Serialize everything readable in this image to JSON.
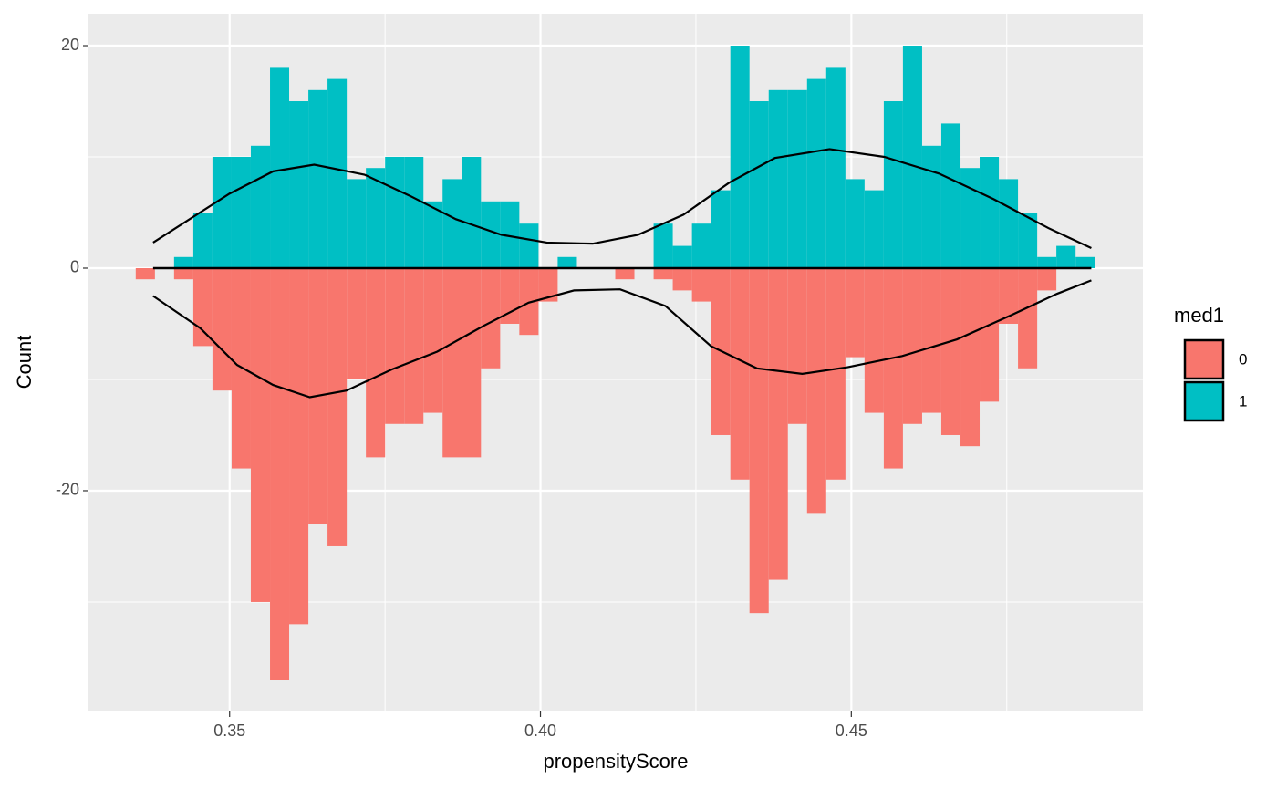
{
  "chart_data": {
    "type": "histogram",
    "xlabel": "propensityScore",
    "ylabel": "Count",
    "legend_title": "med1",
    "legend": "right",
    "grid": true,
    "background": "#EBEBEB",
    "xlim": [
      0.3273,
      0.4969
    ],
    "ylim": [
      -39.84,
      22.87
    ],
    "xticks": [
      0.35,
      {
        "value": 0.4,
        "label": "0.40"
      },
      0.45
    ],
    "yticks": [
      -20,
      0,
      20
    ],
    "xminor": [
      0.375,
      0.425,
      0.475
    ],
    "yminor": [
      -30,
      -10,
      10
    ],
    "bins": [
      0.3349,
      0.33799,
      0.34107,
      0.34416,
      0.34724,
      0.35033,
      0.35341,
      0.3565,
      0.35958,
      0.36267,
      0.36575,
      0.36884,
      0.37192,
      0.37501,
      0.37809,
      0.38118,
      0.38426,
      0.38735,
      0.39043,
      0.39352,
      0.3966,
      0.39969,
      0.40277,
      0.40586,
      0.40894,
      0.41203,
      0.41511,
      0.4182,
      0.42128,
      0.42437,
      0.42745,
      0.43054,
      0.43362,
      0.43671,
      0.43979,
      0.44288,
      0.44596,
      0.44905,
      0.45213,
      0.45522,
      0.4583,
      0.46139,
      0.46447,
      0.46756,
      0.47064,
      0.47373,
      0.47681,
      0.4799,
      0.48298,
      0.48607,
      0.48915
    ],
    "series": [
      {
        "name": "0",
        "color": "#F8766D",
        "values": [
          -1,
          0,
          -1,
          -7,
          -11,
          -18,
          -30,
          -37,
          -32,
          -23,
          -25,
          -10,
          -17,
          -14,
          -14,
          -13,
          -17,
          -17,
          -9,
          -5,
          -6,
          -3,
          0,
          0,
          0,
          -1,
          0,
          -1,
          -2,
          -3,
          -15,
          -19,
          -31,
          -28,
          -14,
          -22,
          -19,
          -8,
          -13,
          -18,
          -14,
          -13,
          -15,
          -16,
          -12,
          -5,
          -9,
          -2,
          0,
          0
        ]
      },
      {
        "name": "1",
        "color": "#00BFC4",
        "values": [
          0,
          0,
          1,
          5,
          10,
          10,
          11,
          18,
          15,
          16,
          17,
          8,
          9,
          10,
          10,
          6,
          8,
          10,
          6,
          6,
          4,
          0,
          1,
          0,
          0,
          0,
          0,
          4,
          2,
          4,
          7,
          20,
          15,
          16,
          16,
          17,
          18,
          8,
          7,
          15,
          20,
          11,
          13,
          9,
          10,
          8,
          5,
          1,
          2,
          1
        ]
      }
    ],
    "curves": [
      {
        "color": "#000000",
        "x": [
          0.3377,
          0.35,
          0.357,
          0.3636,
          0.3717,
          0.379,
          0.3864,
          0.3937,
          0.401,
          0.4084,
          0.4157,
          0.423,
          0.4304,
          0.4377,
          0.4465,
          0.4553,
          0.4641,
          0.4729,
          0.4817,
          0.4886
        ],
        "y": [
          2.3,
          6.7,
          8.7,
          9.3,
          8.4,
          6.5,
          4.4,
          3.0,
          2.3,
          2.2,
          3.0,
          4.8,
          7.7,
          9.9,
          10.7,
          10.0,
          8.5,
          6.2,
          3.6,
          1.8
        ]
      },
      {
        "color": "#000000",
        "x": [
          0.3377,
          0.3453,
          0.3512,
          0.357,
          0.3629,
          0.3688,
          0.3761,
          0.3834,
          0.3908,
          0.3981,
          0.4054,
          0.4128,
          0.4201,
          0.4274,
          0.4348,
          0.4421,
          0.4494,
          0.4582,
          0.467,
          0.4758,
          0.4831,
          0.4886
        ],
        "y": [
          -2.5,
          -5.4,
          -8.7,
          -10.5,
          -11.6,
          -11.0,
          -9.1,
          -7.5,
          -5.2,
          -3.1,
          -2.0,
          -1.9,
          -3.4,
          -7.0,
          -9.0,
          -9.5,
          -8.9,
          -7.9,
          -6.4,
          -4.2,
          -2.3,
          -1.1
        ]
      }
    ]
  }
}
